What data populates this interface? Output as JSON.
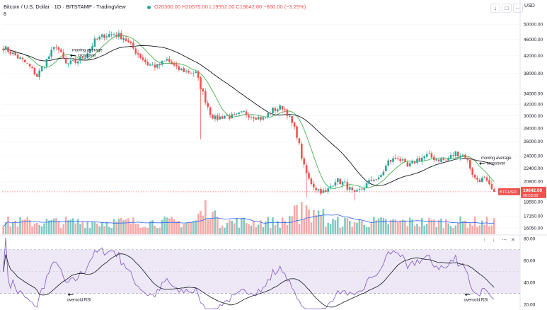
{
  "header": {
    "title": "Bitcoin / U.S. Dollar · 1D · BITSTAMP · TradingView",
    "ohlc": "O20300.00 H20575.00 L19552.00 C19642.00 −660.00 (−3.25%)",
    "indicator_row": "8",
    "currency": "USD",
    "toolbar_icons": [
      "arrow-down-icon",
      "square-icon",
      "more-icon"
    ]
  },
  "colors": {
    "up": "#26a69a",
    "down": "#ef5350",
    "ma_fast": "#4caf50",
    "ma_slow": "#131722",
    "rsi": "#7e57c2",
    "rsi_ma": "#131722",
    "rsi_band": "#ede7f6",
    "price_line": "#ef5350",
    "vol_up": "#7fcac3",
    "vol_down": "#f7a9a7",
    "vol_ma": "#2962ff"
  },
  "price_tag": {
    "symbol": "BTCUSD",
    "value": "19642.00",
    "countdown": "08:59:09"
  },
  "annotations": [
    {
      "text": "moving average crossover",
      "pane": "price",
      "date_index": 28,
      "value": 42000
    },
    {
      "text": "moving average crossover",
      "pane": "price",
      "date_index": 198,
      "value": 23000
    },
    {
      "text": "oversold RSI",
      "pane": "rsi",
      "date_index": 27,
      "value": 29
    },
    {
      "text": "oversold RSI",
      "pane": "rsi",
      "date_index": 192,
      "value": 29
    }
  ],
  "rsi_panel": {
    "ticks": [
      "80.00",
      "60.00",
      "40.00",
      "20.00"
    ],
    "levels": [
      70,
      30
    ],
    "ylim": [
      15,
      82
    ]
  },
  "chart_data": {
    "type": "candlestick",
    "symbol": "BTCUSD",
    "timeframe": "1D",
    "price_scale": "log",
    "ylim": [
      15800,
      52500
    ],
    "y_ticks": [
      50000,
      46000,
      42000,
      38000,
      34000,
      32000,
      30000,
      28000,
      26000,
      24000,
      22400,
      20800,
      18550,
      17150,
      16050
    ],
    "bars": 205,
    "last_close": 19642,
    "anchor_closes": [
      [
        0,
        44000
      ],
      [
        5,
        42000
      ],
      [
        10,
        40000
      ],
      [
        14,
        37500
      ],
      [
        18,
        41000
      ],
      [
        22,
        44500
      ],
      [
        26,
        40000
      ],
      [
        30,
        40500
      ],
      [
        34,
        42000
      ],
      [
        38,
        45500
      ],
      [
        42,
        47000
      ],
      [
        46,
        47500
      ],
      [
        50,
        46500
      ],
      [
        55,
        43000
      ],
      [
        60,
        40000
      ],
      [
        64,
        39500
      ],
      [
        68,
        41000
      ],
      [
        72,
        39000
      ],
      [
        76,
        38500
      ],
      [
        80,
        38000
      ],
      [
        83,
        34000
      ],
      [
        86,
        30500
      ],
      [
        88,
        29500
      ],
      [
        92,
        30000
      ],
      [
        96,
        29800
      ],
      [
        100,
        30500
      ],
      [
        104,
        30000
      ],
      [
        108,
        29500
      ],
      [
        112,
        31000
      ],
      [
        116,
        31500
      ],
      [
        118,
        30500
      ],
      [
        122,
        27000
      ],
      [
        125,
        22500
      ],
      [
        127,
        21000
      ],
      [
        130,
        20000
      ],
      [
        134,
        19500
      ],
      [
        138,
        21000
      ],
      [
        142,
        20500
      ],
      [
        146,
        19300
      ],
      [
        150,
        20200
      ],
      [
        154,
        21200
      ],
      [
        156,
        21000
      ],
      [
        160,
        23200
      ],
      [
        164,
        23800
      ],
      [
        168,
        22500
      ],
      [
        172,
        23500
      ],
      [
        176,
        24000
      ],
      [
        180,
        23600
      ],
      [
        184,
        23400
      ],
      [
        188,
        24400
      ],
      [
        192,
        24000
      ],
      [
        196,
        21100
      ],
      [
        200,
        21000
      ],
      [
        203,
        19800
      ],
      [
        204,
        19642
      ]
    ]
  }
}
